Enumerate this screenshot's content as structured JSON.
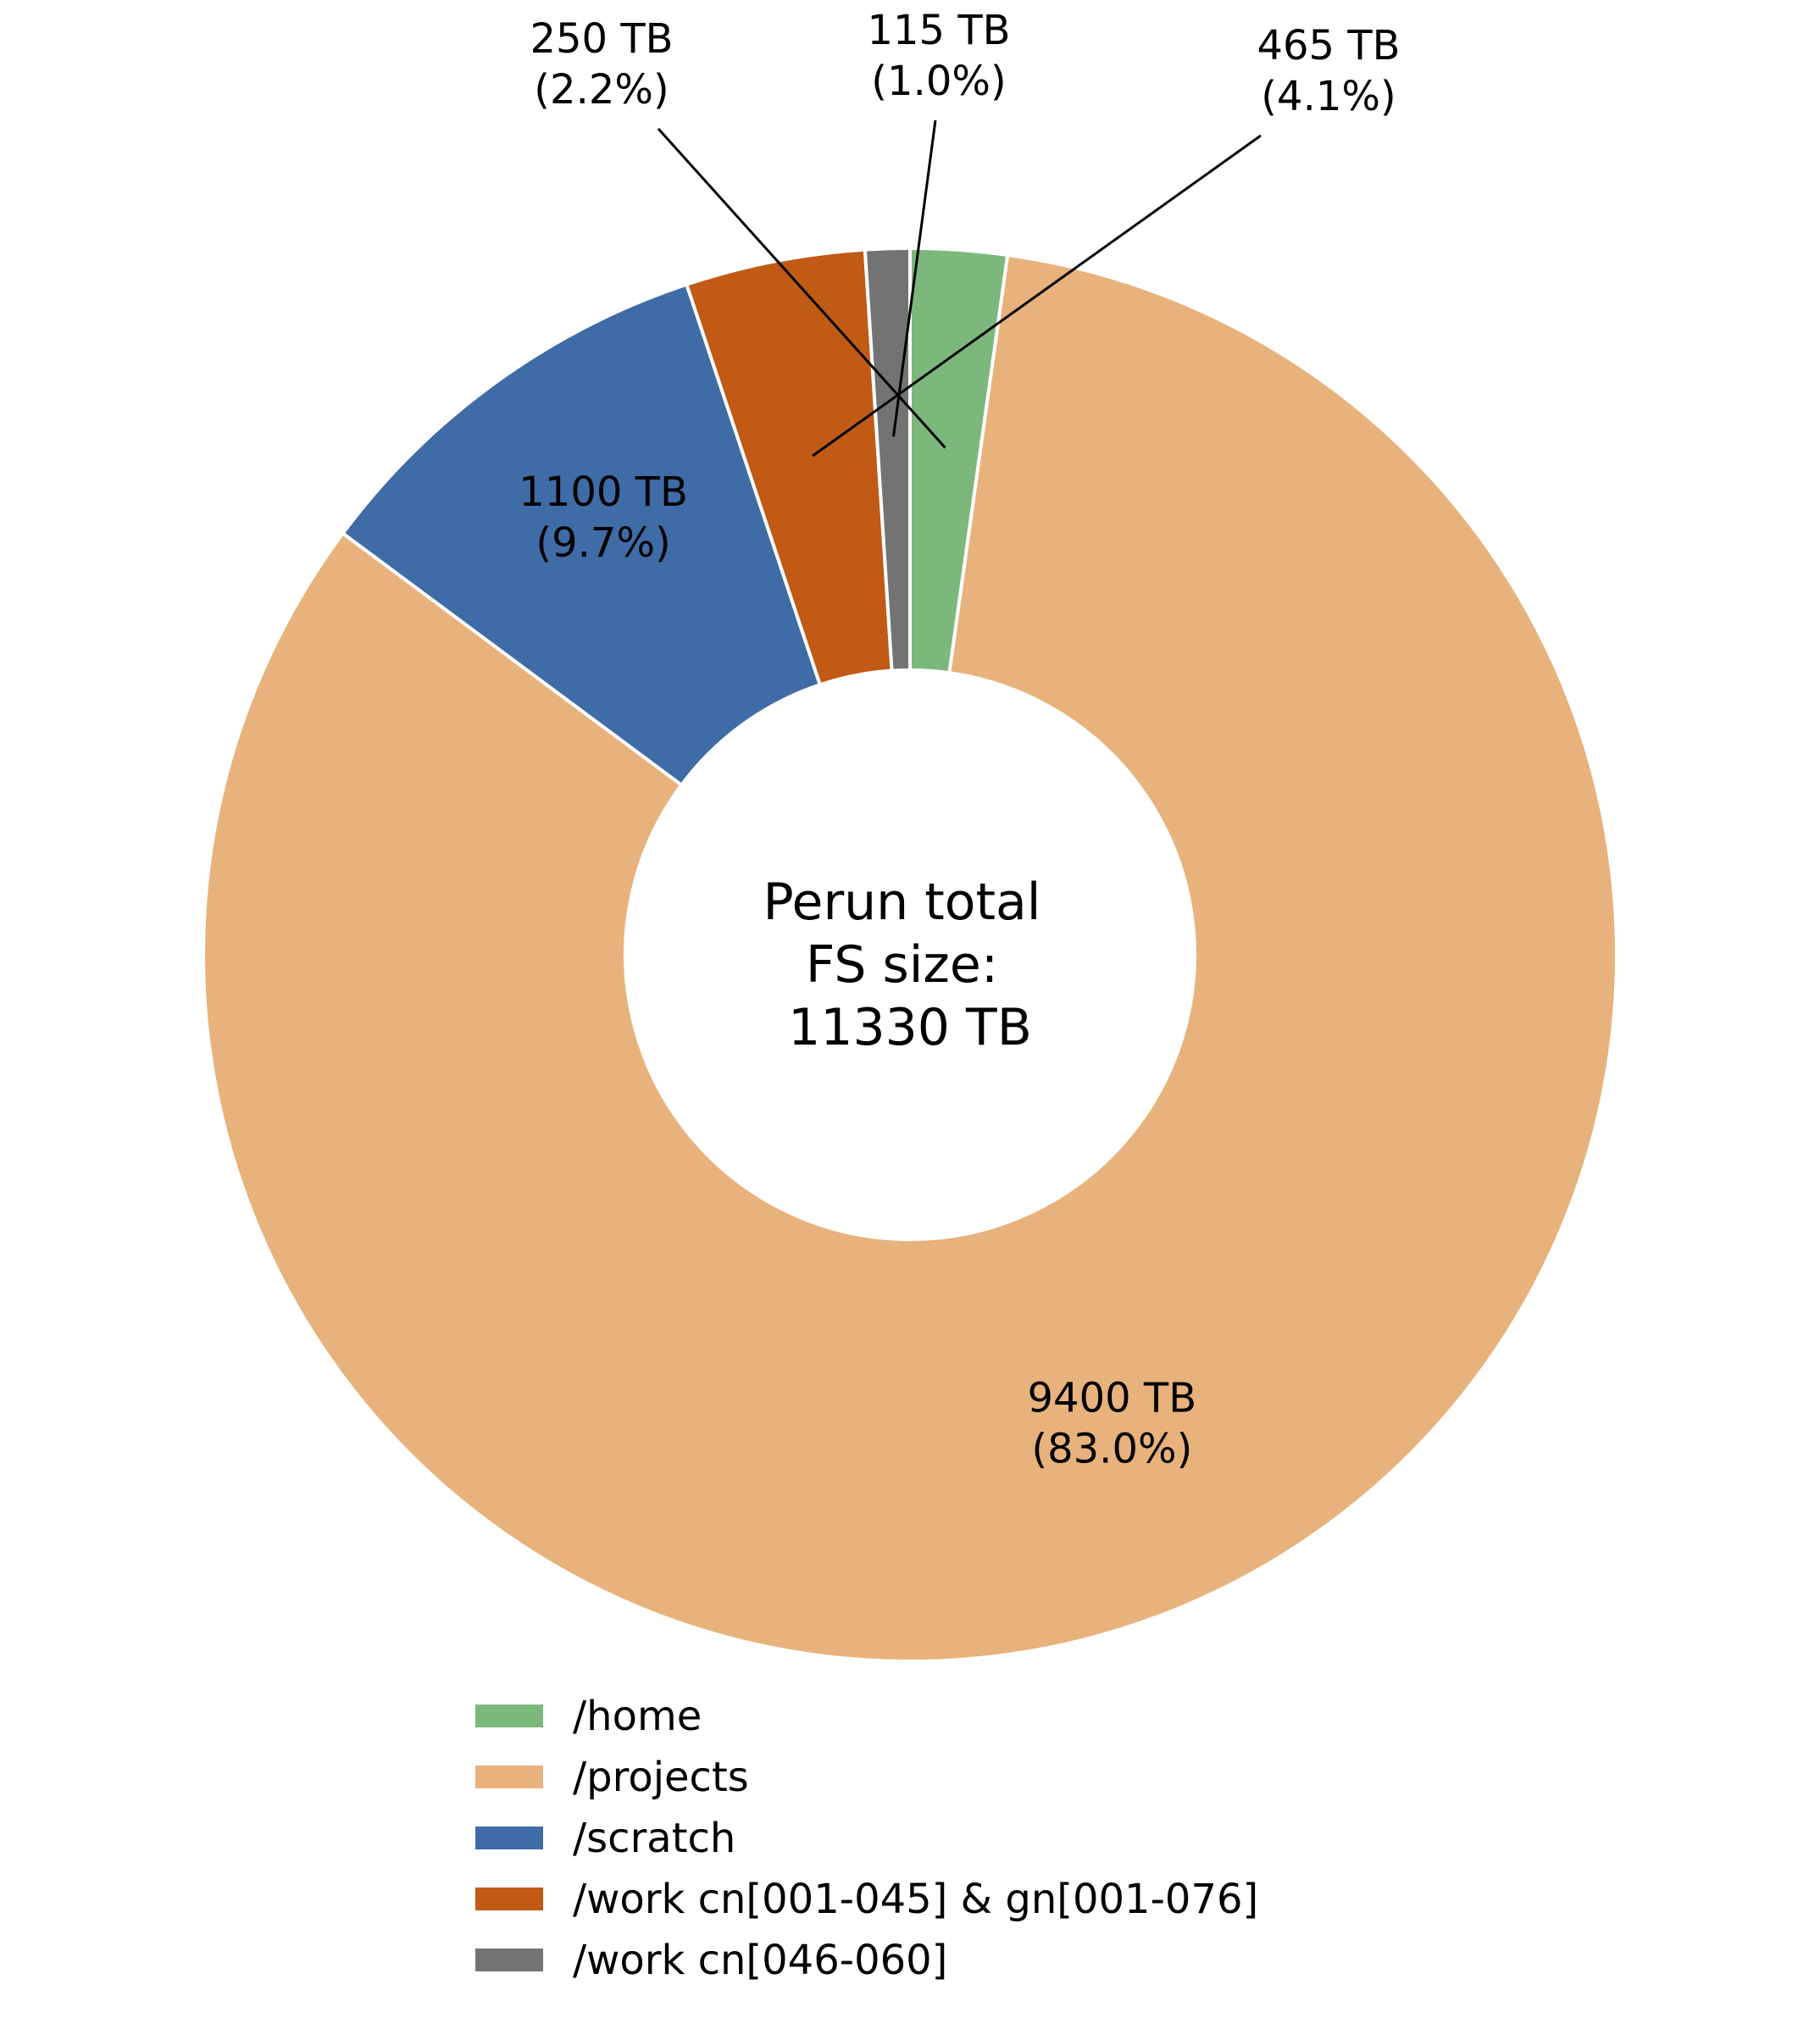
{
  "chart_data": {
    "type": "pie",
    "style": "donut",
    "title": "",
    "center_label": [
      "Perun total",
      "FS size:",
      "11330 TB"
    ],
    "unit": "TB",
    "total": 11330,
    "slices": [
      {
        "name": "/home",
        "value": 250,
        "percent": "2.2%",
        "value_label": "250 TB",
        "color": "#7cb87b"
      },
      {
        "name": "/projects",
        "value": 9400,
        "percent": "83.0%",
        "value_label": "9400 TB",
        "color": "#e8b27c"
      },
      {
        "name": "/scratch",
        "value": 1100,
        "percent": "9.7%",
        "value_label": "1100 TB",
        "color": "#3f6ca7"
      },
      {
        "name": "/work cn[001-045] & gn[001-076]",
        "value": 465,
        "percent": "4.1%",
        "value_label": "465 TB",
        "color": "#c05a15"
      },
      {
        "name": "/work cn[046-060]",
        "value": 115,
        "percent": "1.0%",
        "value_label": "115 TB",
        "color": "#737373"
      }
    ],
    "legend_position": "bottom",
    "slice_border_color": "#ffffff"
  }
}
